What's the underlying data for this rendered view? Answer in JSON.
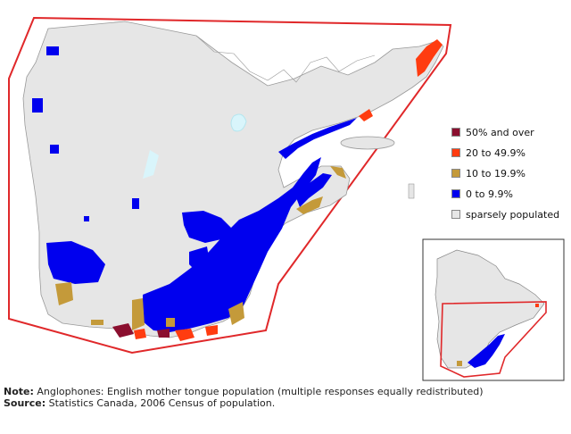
{
  "legend": {
    "items": [
      {
        "label": "50% and over",
        "color": "#8b0f2f"
      },
      {
        "label": "20 to 49.9%",
        "color": "#ff3c10"
      },
      {
        "label": "10 to 19.9%",
        "color": "#c49a3a"
      },
      {
        "label": "0 to 9.9%",
        "color": "#0000ee"
      },
      {
        "label": "sparsely populated",
        "color": "#e6e6e6"
      }
    ]
  },
  "notes": {
    "note_label": "Note:",
    "note_text": "Anglophones: English mother tongue population (multiple responses equally redistributed)",
    "source_label": "Source:",
    "source_text": "Statistics Canada, 2006 Census of population."
  },
  "colors": {
    "frame": "#e0282a",
    "land": "#e6e6e6",
    "water": "#d9f5fb",
    "border": "#888888"
  }
}
